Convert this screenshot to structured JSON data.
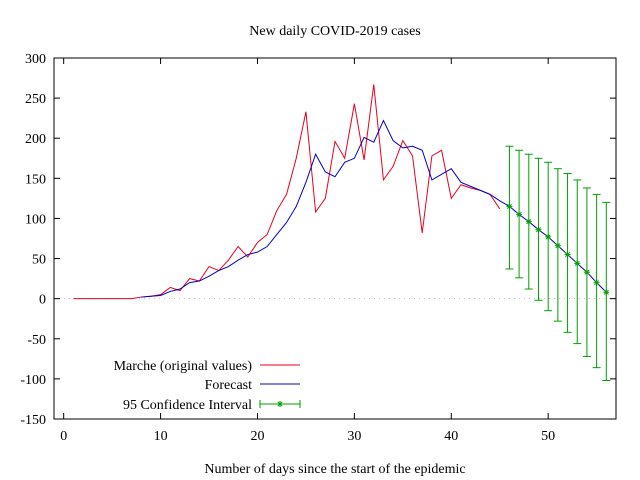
{
  "chart_data": {
    "type": "line",
    "title": "New daily COVID-2019 cases",
    "xlabel": "Number of days since the start of the epidemic",
    "ylabel": "",
    "xlim": [
      -1,
      57
    ],
    "ylim": [
      -150,
      300
    ],
    "xticks": [
      0,
      10,
      20,
      30,
      40,
      50
    ],
    "yticks": [
      -150,
      -100,
      -50,
      0,
      50,
      100,
      150,
      200,
      250,
      300
    ],
    "legend_position": "bottom-left",
    "series": [
      {
        "name": "Marche (original values)",
        "color": "#e8001c",
        "style": "line",
        "x": [
          1,
          2,
          3,
          4,
          5,
          6,
          7,
          8,
          9,
          10,
          11,
          12,
          13,
          14,
          15,
          16,
          17,
          18,
          19,
          20,
          21,
          22,
          23,
          24,
          25,
          26,
          27,
          28,
          29,
          30,
          31,
          32,
          33,
          34,
          35,
          36,
          37,
          38,
          39,
          40,
          41,
          42,
          43,
          44,
          45
        ],
        "y": [
          0,
          0,
          0,
          0,
          0,
          0,
          0,
          2,
          3,
          5,
          14,
          10,
          25,
          22,
          40,
          35,
          48,
          65,
          52,
          70,
          80,
          110,
          130,
          175,
          233,
          108,
          125,
          196,
          175,
          243,
          173,
          267,
          148,
          165,
          197,
          178,
          82,
          178,
          185,
          125,
          142,
          138,
          135,
          130,
          112
        ]
      },
      {
        "name": "Forecast",
        "color": "#0000c8",
        "style": "line",
        "x": [
          8,
          9,
          10,
          11,
          12,
          13,
          14,
          15,
          16,
          17,
          18,
          19,
          20,
          21,
          22,
          23,
          24,
          25,
          26,
          27,
          28,
          29,
          30,
          31,
          32,
          33,
          34,
          35,
          36,
          37,
          38,
          39,
          40,
          41,
          42,
          43,
          44,
          45,
          46,
          47,
          48,
          49,
          50,
          51,
          52,
          53,
          54,
          55,
          56
        ],
        "y": [
          2,
          3,
          4,
          9,
          12,
          20,
          22,
          28,
          35,
          40,
          48,
          55,
          58,
          65,
          80,
          95,
          115,
          145,
          180,
          158,
          152,
          170,
          175,
          201,
          195,
          222,
          197,
          188,
          190,
          185,
          148,
          155,
          162,
          145,
          140,
          135,
          130,
          122,
          115,
          105,
          96,
          86,
          77,
          66,
          55,
          44,
          33,
          20,
          8
        ]
      },
      {
        "name": "95 Confidence Interval",
        "color": "#00a000",
        "style": "errorbars",
        "x": [
          46,
          47,
          48,
          49,
          50,
          51,
          52,
          53,
          54,
          55,
          56
        ],
        "y": [
          115,
          105,
          96,
          86,
          77,
          66,
          55,
          44,
          33,
          20,
          8
        ],
        "low": [
          37,
          26,
          12,
          -2,
          -15,
          -28,
          -42,
          -56,
          -72,
          -86,
          -102
        ],
        "high": [
          190,
          185,
          180,
          175,
          170,
          162,
          156,
          148,
          138,
          130,
          120
        ]
      }
    ]
  }
}
